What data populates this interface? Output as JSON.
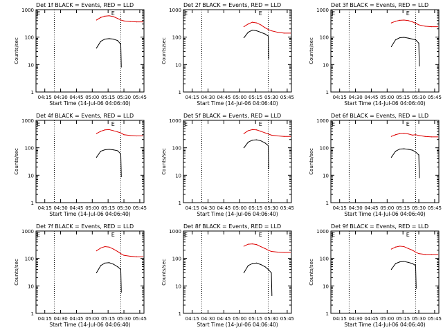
{
  "common": {
    "title_suffix": "BLACK = Events, RED = LLD",
    "xlabel": "Start Time (14-Jul-06 04:06:40)",
    "ylabel": "Counts/sec",
    "xticks": [
      "04:15",
      "04:30",
      "04:45",
      "05:00",
      "05:15",
      "05:30",
      "05:45"
    ],
    "yticks": [
      "1",
      "10",
      "100",
      "1000"
    ],
    "corner_flag_left": "E",
    "corner_flag_right": "E",
    "colors": {
      "events": "#000000",
      "lld": "#dd0000",
      "axis": "#000000"
    }
  },
  "chart_data": [
    {
      "type": "line",
      "title": "Det 1f BLACK = Events, RED = LLD",
      "xlabel": "Start Time (14-Jul-06 04:06:40)",
      "ylabel": "Counts/sec",
      "ylog": true,
      "ylim": [
        1,
        1000
      ],
      "xlim": [
        "04:06:40",
        "05:49:00"
      ],
      "x": [
        "05:04",
        "05:08",
        "05:12",
        "05:16",
        "05:20",
        "05:24",
        "05:27",
        "05:30",
        "05:36",
        "05:42",
        "05:48"
      ],
      "series": [
        {
          "name": "Events",
          "values": [
            40,
            70,
            85,
            88,
            85,
            75,
            55,
            null,
            null,
            null,
            null
          ]
        },
        {
          "name": "LLD",
          "values": [
            420,
            520,
            580,
            600,
            560,
            480,
            420,
            390,
            370,
            360,
            360
          ]
        }
      ]
    },
    {
      "type": "line",
      "title": "Det 2f BLACK = Events, RED = LLD",
      "xlabel": "Start Time (14-Jul-06 04:06:40)",
      "ylabel": "Counts/sec",
      "ylog": true,
      "ylim": [
        1,
        1000
      ],
      "xlim": [
        "04:06:40",
        "05:49:00"
      ],
      "x": [
        "05:04",
        "05:08",
        "05:12",
        "05:16",
        "05:20",
        "05:24",
        "05:27",
        "05:30",
        "05:36",
        "05:42",
        "05:48"
      ],
      "series": [
        {
          "name": "Events",
          "values": [
            95,
            150,
            180,
            170,
            150,
            130,
            110,
            null,
            null,
            null,
            null
          ]
        },
        {
          "name": "LLD",
          "values": [
            240,
            300,
            350,
            330,
            280,
            220,
            190,
            170,
            150,
            140,
            140
          ]
        }
      ]
    },
    {
      "type": "line",
      "title": "Det 3f BLACK = Events, RED = LLD",
      "xlabel": "Start Time (14-Jul-06 04:06:40)",
      "ylabel": "Counts/sec",
      "ylog": true,
      "ylim": [
        1,
        1000
      ],
      "xlim": [
        "04:06:40",
        "05:49:00"
      ],
      "x": [
        "05:04",
        "05:08",
        "05:12",
        "05:16",
        "05:20",
        "05:24",
        "05:27",
        "05:30",
        "05:36",
        "05:42",
        "05:48"
      ],
      "series": [
        {
          "name": "Events",
          "values": [
            45,
            80,
            95,
            98,
            92,
            85,
            80,
            60,
            null,
            null,
            null
          ]
        },
        {
          "name": "LLD",
          "values": [
            330,
            380,
            410,
            420,
            400,
            360,
            320,
            280,
            250,
            240,
            240
          ]
        }
      ]
    },
    {
      "type": "line",
      "title": "Det 4f BLACK = Events, RED = LLD",
      "xlabel": "Start Time (14-Jul-06 04:06:40)",
      "ylabel": "Counts/sec",
      "ylog": true,
      "ylim": [
        1,
        1000
      ],
      "xlim": [
        "04:06:40",
        "05:49:00"
      ],
      "x": [
        "05:04",
        "05:08",
        "05:12",
        "05:16",
        "05:20",
        "05:24",
        "05:27",
        "05:30",
        "05:36",
        "05:42",
        "05:48"
      ],
      "series": [
        {
          "name": "Events",
          "values": [
            45,
            75,
            85,
            88,
            84,
            78,
            60,
            null,
            null,
            null,
            null
          ]
        },
        {
          "name": "LLD",
          "values": [
            330,
            400,
            450,
            460,
            420,
            380,
            350,
            300,
            280,
            270,
            270
          ]
        }
      ]
    },
    {
      "type": "line",
      "title": "Det 5f BLACK = Events, RED = LLD",
      "xlabel": "Start Time (14-Jul-06 04:06:40)",
      "ylabel": "Counts/sec",
      "ylog": true,
      "ylim": [
        1,
        1000
      ],
      "xlim": [
        "04:06:40",
        "05:49:00"
      ],
      "x": [
        "05:04",
        "05:08",
        "05:12",
        "05:16",
        "05:20",
        "05:24",
        "05:27",
        "05:30",
        "05:36",
        "05:42",
        "05:48"
      ],
      "series": [
        {
          "name": "Events",
          "values": [
            100,
            160,
            190,
            195,
            180,
            150,
            120,
            null,
            null,
            null,
            null
          ]
        },
        {
          "name": "LLD",
          "values": [
            330,
            420,
            460,
            450,
            400,
            350,
            320,
            290,
            270,
            260,
            260
          ]
        }
      ]
    },
    {
      "type": "line",
      "title": "Det 6f BLACK = Events, RED = LLD",
      "xlabel": "Start Time (14-Jul-06 04:06:40)",
      "ylabel": "Counts/sec",
      "ylog": true,
      "ylim": [
        1,
        1000
      ],
      "xlim": [
        "04:06:40",
        "05:49:00"
      ],
      "x": [
        "05:04",
        "05:08",
        "05:12",
        "05:16",
        "05:20",
        "05:24",
        "05:27",
        "05:30",
        "05:36",
        "05:42",
        "05:48"
      ],
      "series": [
        {
          "name": "Events",
          "values": [
            45,
            75,
            90,
            92,
            88,
            82,
            70,
            55,
            null,
            null,
            null
          ]
        },
        {
          "name": "LLD",
          "values": [
            260,
            300,
            330,
            340,
            320,
            290,
            300,
            280,
            260,
            250,
            250
          ]
        }
      ]
    },
    {
      "type": "line",
      "title": "Det 7f BLACK = Events, RED = LLD",
      "xlabel": "Start Time (14-Jul-06 04:06:40)",
      "ylabel": "Counts/sec",
      "ylog": true,
      "ylim": [
        1,
        1000
      ],
      "xlim": [
        "04:06:40",
        "05:49:00"
      ],
      "x": [
        "05:04",
        "05:08",
        "05:12",
        "05:16",
        "05:20",
        "05:24",
        "05:27",
        "05:30",
        "05:36",
        "05:42",
        "05:48"
      ],
      "series": [
        {
          "name": "Events",
          "values": [
            30,
            55,
            68,
            70,
            62,
            50,
            40,
            null,
            null,
            null,
            null
          ]
        },
        {
          "name": "LLD",
          "values": [
            190,
            240,
            270,
            260,
            220,
            180,
            150,
            130,
            120,
            115,
            115
          ]
        }
      ]
    },
    {
      "type": "line",
      "title": "Det 8f BLACK = Events, RED = LLD",
      "xlabel": "Start Time (14-Jul-06 04:06:40)",
      "ylabel": "Counts/sec",
      "ylog": true,
      "ylim": [
        1,
        1000
      ],
      "xlim": [
        "04:06:40",
        "05:49:00"
      ],
      "x": [
        "05:04",
        "05:08",
        "05:12",
        "05:16",
        "05:20",
        "05:24",
        "05:27",
        "05:30",
        "05:36",
        "05:42",
        "05:48"
      ],
      "series": [
        {
          "name": "Events",
          "values": [
            30,
            55,
            65,
            68,
            60,
            50,
            40,
            30,
            null,
            null,
            null
          ]
        },
        {
          "name": "LLD",
          "values": [
            280,
            330,
            340,
            320,
            270,
            230,
            200,
            180,
            170,
            165,
            165
          ]
        }
      ]
    },
    {
      "type": "line",
      "title": "Det 9f BLACK = Events, RED = LLD",
      "xlabel": "Start Time (14-Jul-06 04:06:40)",
      "ylabel": "Counts/sec",
      "ylog": true,
      "ylim": [
        1,
        1000
      ],
      "xlim": [
        "04:06:40",
        "05:49:00"
      ],
      "x": [
        "05:04",
        "05:08",
        "05:12",
        "05:16",
        "05:20",
        "05:24",
        "05:27",
        "05:30",
        "05:36",
        "05:42",
        "05:48"
      ],
      "series": [
        {
          "name": "Events",
          "values": [
            40,
            65,
            75,
            78,
            72,
            65,
            55,
            null,
            null,
            null,
            null
          ]
        },
        {
          "name": "LLD",
          "values": [
            220,
            260,
            280,
            270,
            230,
            200,
            170,
            150,
            140,
            140,
            140
          ]
        }
      ]
    }
  ]
}
